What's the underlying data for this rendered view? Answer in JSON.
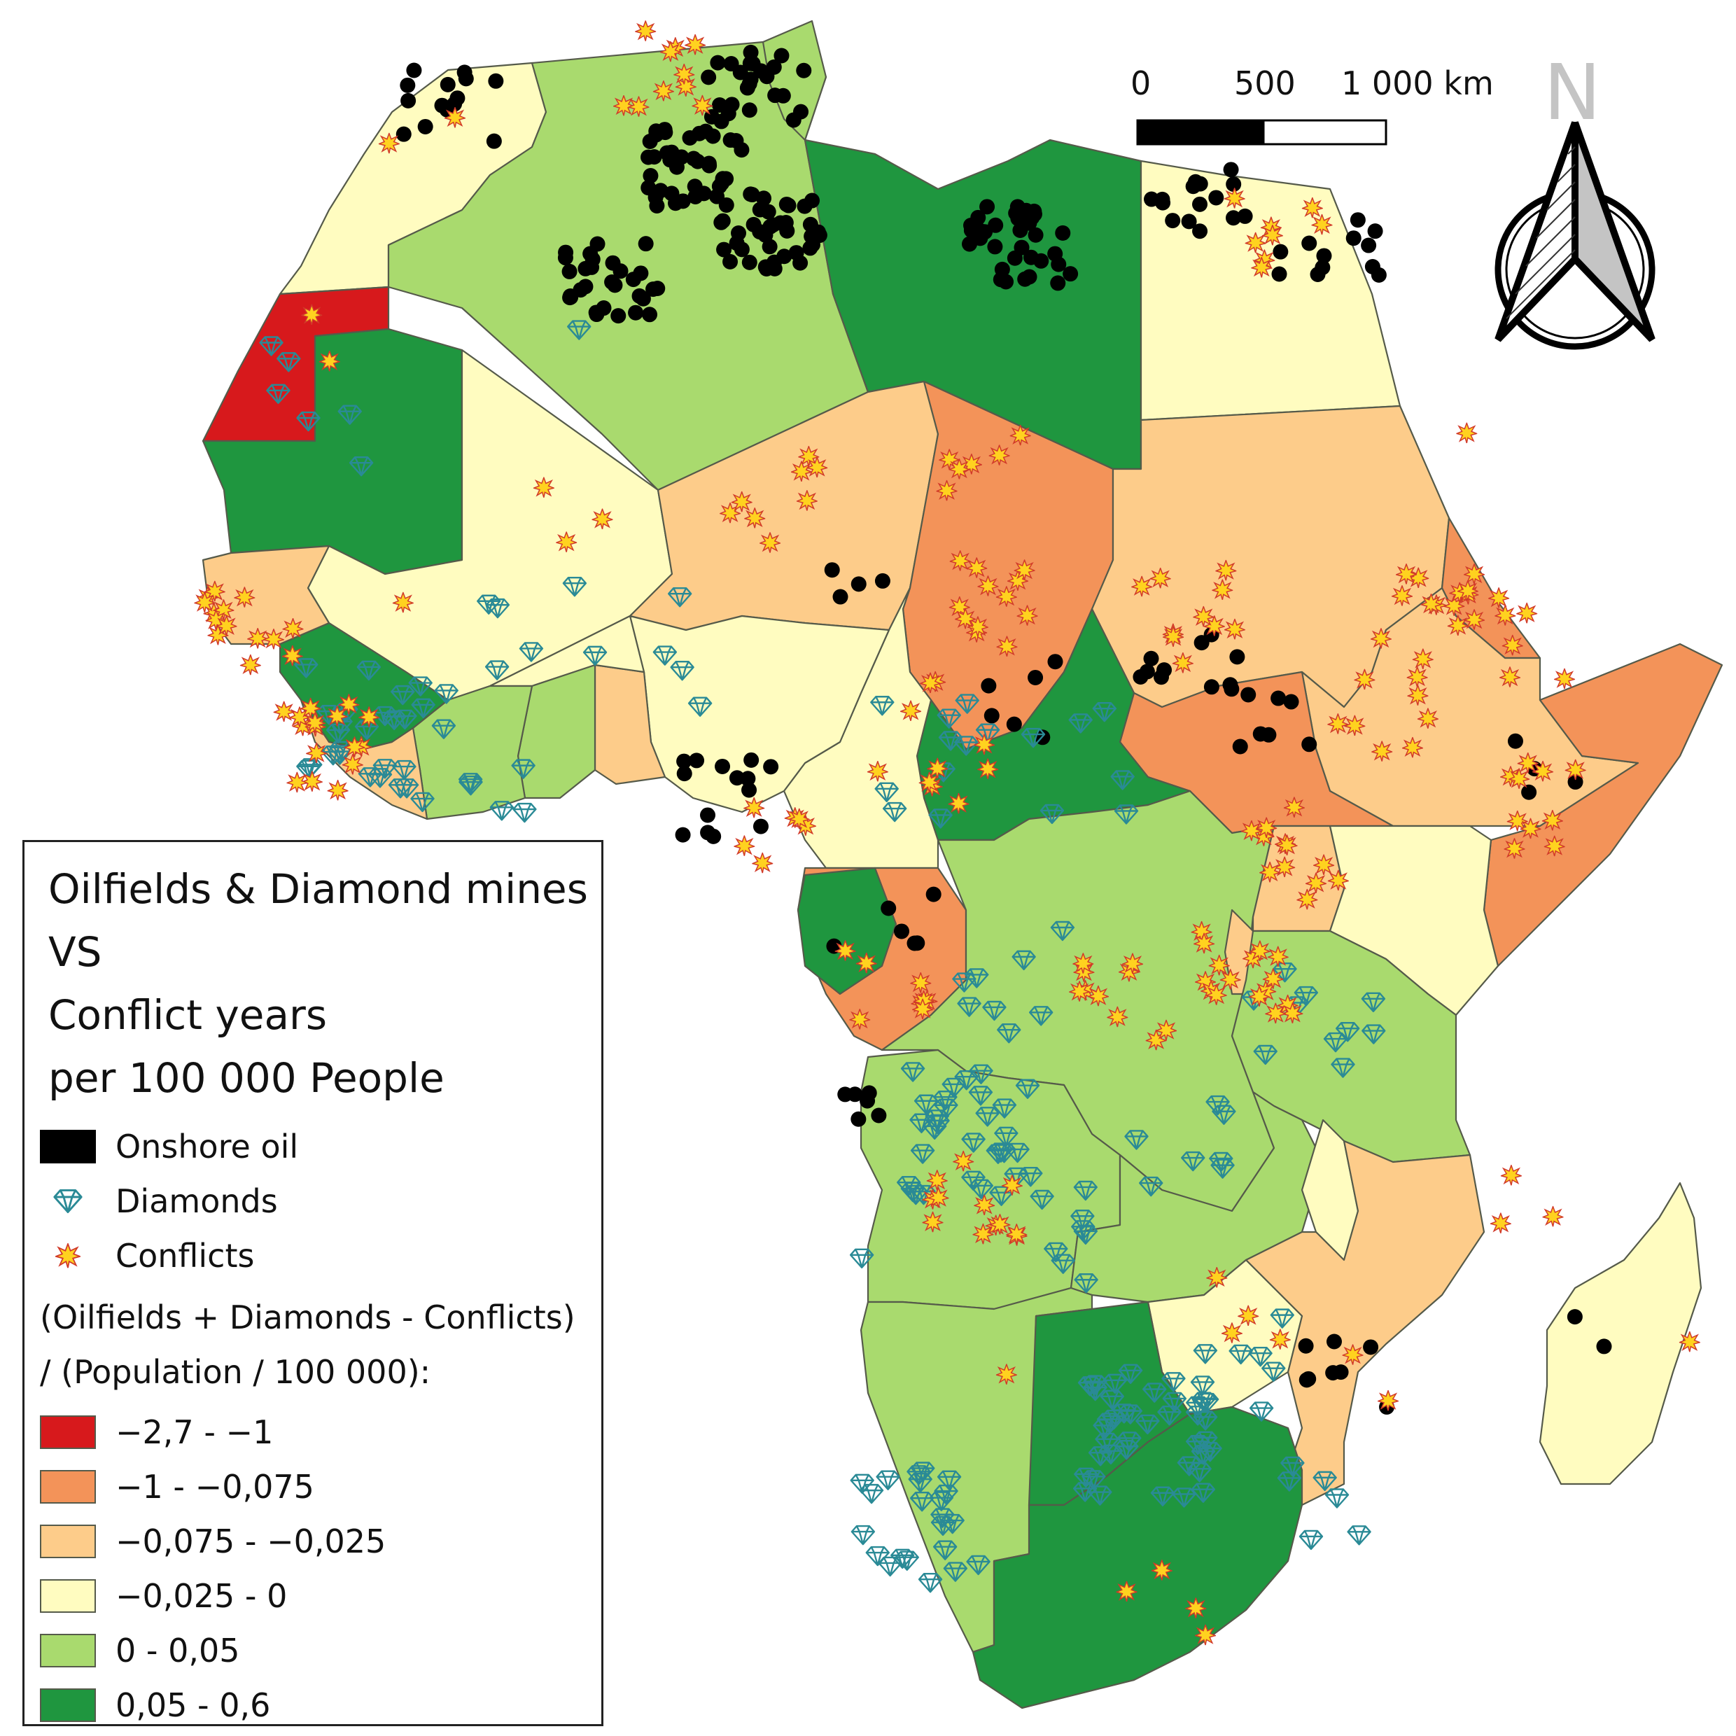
{
  "title_lines": [
    "Oilfields & Diamond mines",
    "VS",
    "Conflict years",
    "per 100 000 People"
  ],
  "scale_bar": {
    "tick_0": "0",
    "tick_1": "500",
    "tick_2": "1 000 km"
  },
  "north_arrow": {
    "letter": "N",
    "icon": "north-arrow-icon"
  },
  "legend": {
    "symbols": [
      {
        "label": "Onshore oil",
        "icon": "oil-field-icon",
        "color": "#000000"
      },
      {
        "label": "Diamonds",
        "icon": "diamond-icon",
        "color": "#2a8a96"
      },
      {
        "label": "Conflicts",
        "icon": "conflict-star-icon",
        "color": "#ffd21f"
      }
    ],
    "classes_title_line1": "(Oilfields + Diamonds - Conflicts)",
    "classes_title_line2": "/ (Population / 100 000):",
    "classes": [
      {
        "label": "−2,7 - −1",
        "color": "#d7191c"
      },
      {
        "label": "−1 - −0,075",
        "color": "#f39359"
      },
      {
        "label": "−0,075 - −0,025",
        "color": "#fdcc8a"
      },
      {
        "label": "−0,025 - 0",
        "color": "#fffcc0"
      },
      {
        "label": "0 - 0,05",
        "color": "#a9da6e"
      },
      {
        "label": "0,05 - 0,6",
        "color": "#1f963f"
      }
    ]
  }
}
